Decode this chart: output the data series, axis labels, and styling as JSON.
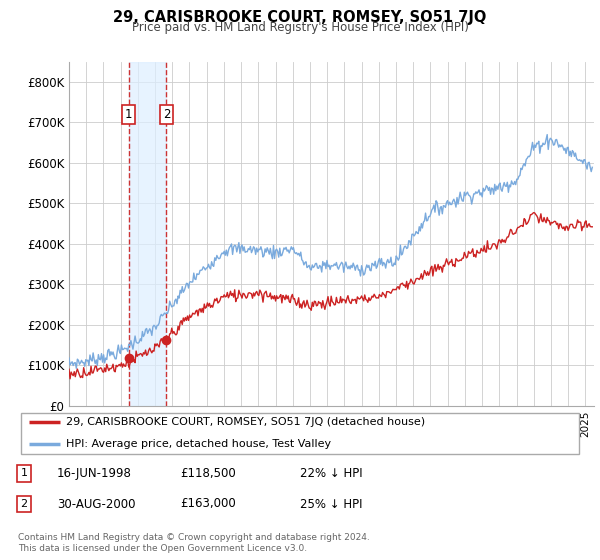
{
  "title": "29, CARISBROOKE COURT, ROMSEY, SO51 7JQ",
  "subtitle": "Price paid vs. HM Land Registry's House Price Index (HPI)",
  "ylim": [
    0,
    850000
  ],
  "yticks": [
    0,
    100000,
    200000,
    300000,
    400000,
    500000,
    600000,
    700000,
    800000
  ],
  "ytick_labels": [
    "£0",
    "£100K",
    "£200K",
    "£300K",
    "£400K",
    "£500K",
    "£600K",
    "£700K",
    "£800K"
  ],
  "hpi_color": "#7aaadd",
  "price_color": "#cc2222",
  "highlight_rect_color": "#ddeeff",
  "highlight_alpha": 0.7,
  "dashed_line_color": "#cc3333",
  "transaction1_x": 1998.46,
  "transaction1_y": 118500,
  "transaction2_x": 2000.66,
  "transaction2_y": 163000,
  "legend_price_label": "29, CARISBROOKE COURT, ROMSEY, SO51 7JQ (detached house)",
  "legend_hpi_label": "HPI: Average price, detached house, Test Valley",
  "footer": "Contains HM Land Registry data © Crown copyright and database right 2024.\nThis data is licensed under the Open Government Licence v3.0.",
  "table_rows": [
    {
      "num": "1",
      "date": "16-JUN-1998",
      "price": "£118,500",
      "change": "22% ↓ HPI"
    },
    {
      "num": "2",
      "date": "30-AUG-2000",
      "price": "£163,000",
      "change": "25% ↓ HPI"
    }
  ],
  "xlim_start": 1995.0,
  "xlim_end": 2025.5
}
